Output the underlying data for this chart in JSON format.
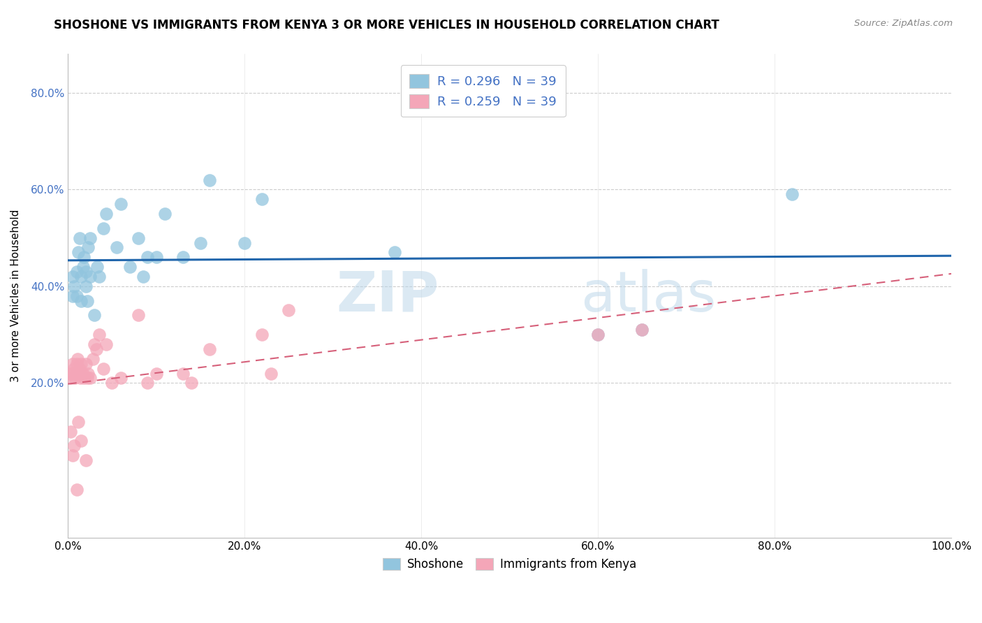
{
  "title": "SHOSHONE VS IMMIGRANTS FROM KENYA 3 OR MORE VEHICLES IN HOUSEHOLD CORRELATION CHART",
  "source": "Source: ZipAtlas.com",
  "ylabel": "3 or more Vehicles in Household",
  "xlim": [
    0,
    1.0
  ],
  "ylim": [
    -0.12,
    0.88
  ],
  "legend1_label": "R = 0.296   N = 39",
  "legend2_label": "R = 0.259   N = 39",
  "legend_bottom_label1": "Shoshone",
  "legend_bottom_label2": "Immigrants from Kenya",
  "shoshone_color": "#92c5de",
  "kenya_color": "#f4a6b8",
  "shoshone_line_color": "#2166ac",
  "kenya_line_color": "#d6607a",
  "watermark_part1": "ZIP",
  "watermark_part2": "atlas",
  "shoshone_x": [
    0.005,
    0.005,
    0.007,
    0.01,
    0.01,
    0.012,
    0.013,
    0.015,
    0.015,
    0.017,
    0.018,
    0.02,
    0.02,
    0.022,
    0.023,
    0.025,
    0.025,
    0.03,
    0.033,
    0.035,
    0.04,
    0.043,
    0.055,
    0.06,
    0.07,
    0.08,
    0.085,
    0.09,
    0.1,
    0.11,
    0.13,
    0.15,
    0.16,
    0.2,
    0.22,
    0.37,
    0.6,
    0.65,
    0.82
  ],
  "shoshone_y": [
    0.38,
    0.42,
    0.4,
    0.38,
    0.43,
    0.47,
    0.5,
    0.37,
    0.42,
    0.44,
    0.46,
    0.4,
    0.43,
    0.37,
    0.48,
    0.42,
    0.5,
    0.34,
    0.44,
    0.42,
    0.52,
    0.55,
    0.48,
    0.57,
    0.44,
    0.5,
    0.42,
    0.46,
    0.46,
    0.55,
    0.46,
    0.49,
    0.62,
    0.49,
    0.58,
    0.47,
    0.3,
    0.31,
    0.59
  ],
  "kenya_x": [
    0.003,
    0.004,
    0.005,
    0.006,
    0.007,
    0.008,
    0.01,
    0.01,
    0.011,
    0.012,
    0.013,
    0.014,
    0.015,
    0.016,
    0.017,
    0.018,
    0.02,
    0.022,
    0.023,
    0.025,
    0.028,
    0.03,
    0.032,
    0.035,
    0.04,
    0.043,
    0.05,
    0.06,
    0.08,
    0.09,
    0.1,
    0.13,
    0.14,
    0.16,
    0.22,
    0.23,
    0.25,
    0.6,
    0.65
  ],
  "kenya_y": [
    0.22,
    0.21,
    0.24,
    0.22,
    0.23,
    0.21,
    0.24,
    0.22,
    0.25,
    0.22,
    0.23,
    0.21,
    0.24,
    0.22,
    0.22,
    0.21,
    0.24,
    0.21,
    0.22,
    0.21,
    0.25,
    0.28,
    0.27,
    0.3,
    0.23,
    0.28,
    0.2,
    0.21,
    0.34,
    0.2,
    0.22,
    0.22,
    0.2,
    0.27,
    0.3,
    0.22,
    0.35,
    0.3,
    0.31
  ],
  "kenya_extra_x": [
    0.003,
    0.005,
    0.007,
    0.01,
    0.012,
    0.015,
    0.02
  ],
  "kenya_extra_y": [
    0.1,
    0.05,
    0.07,
    -0.02,
    0.12,
    0.08,
    0.04
  ]
}
